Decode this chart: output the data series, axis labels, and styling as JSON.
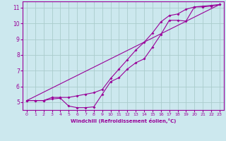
{
  "xlabel": "Windchill (Refroidissement éolien,°C)",
  "line_color": "#990099",
  "background_color": "#cce8ee",
  "grid_color": "#aacccc",
  "xlim": [
    -0.5,
    23.5
  ],
  "ylim": [
    4.5,
    11.4
  ],
  "xticks": [
    0,
    1,
    2,
    3,
    4,
    5,
    6,
    7,
    8,
    9,
    10,
    11,
    12,
    13,
    14,
    15,
    16,
    17,
    18,
    19,
    20,
    21,
    22,
    23
  ],
  "yticks": [
    5,
    6,
    7,
    8,
    9,
    10,
    11
  ],
  "line1_x": [
    0,
    1,
    2,
    3,
    4,
    5,
    6,
    7,
    8,
    9,
    10,
    11,
    12,
    13,
    14,
    15,
    16,
    17,
    18,
    19,
    20,
    21,
    22,
    23
  ],
  "line1_y": [
    5.1,
    5.1,
    5.1,
    5.2,
    5.25,
    4.75,
    4.65,
    4.65,
    4.7,
    5.5,
    6.3,
    6.55,
    7.1,
    7.5,
    7.75,
    8.5,
    9.3,
    10.2,
    10.2,
    10.15,
    11.05,
    11.05,
    11.1,
    11.2
  ],
  "line2_x": [
    0,
    1,
    2,
    3,
    4,
    5,
    6,
    7,
    8,
    9,
    10,
    11,
    12,
    13,
    14,
    15,
    16,
    17,
    18,
    19,
    20,
    21,
    22,
    23
  ],
  "line2_y": [
    5.1,
    5.1,
    5.1,
    5.3,
    5.3,
    5.3,
    5.4,
    5.5,
    5.6,
    5.8,
    6.5,
    7.1,
    7.7,
    8.3,
    8.8,
    9.4,
    10.1,
    10.5,
    10.6,
    10.9,
    11.05,
    11.1,
    11.15,
    11.2
  ],
  "line3_x": [
    0,
    23
  ],
  "line3_y": [
    5.1,
    11.2
  ]
}
